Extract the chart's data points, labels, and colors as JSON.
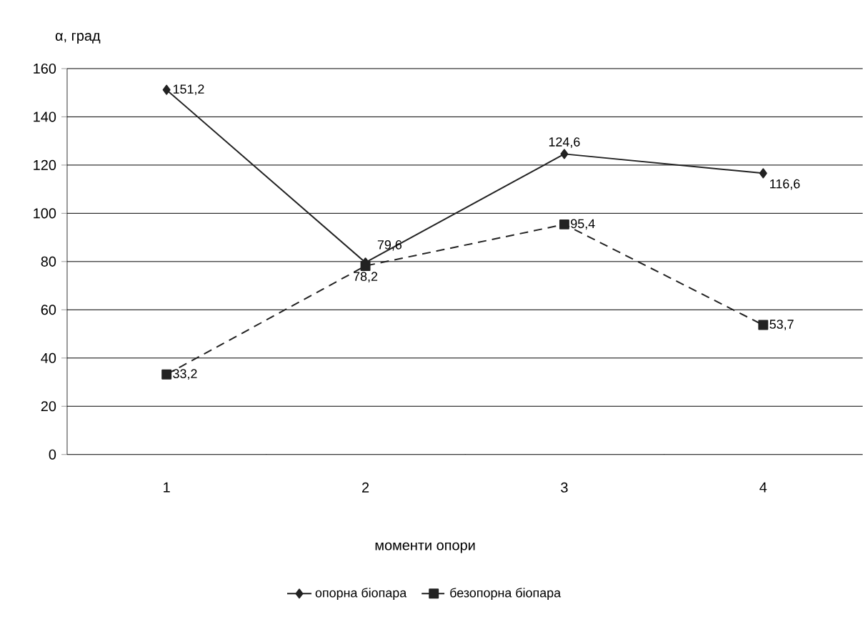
{
  "chart_data": {
    "type": "line",
    "xlabel": "моменти опори",
    "ylabel": "α, град",
    "categories": [
      "1",
      "2",
      "3",
      "4"
    ],
    "series": [
      {
        "name": "опорна біопара",
        "color": "#222222",
        "marker": "diamond",
        "line_style": "solid",
        "values": [
          151.2,
          79.6,
          124.6,
          116.6
        ],
        "value_labels": [
          "151,2",
          "79,6",
          "124,6",
          "116,6"
        ]
      },
      {
        "name": "безопорна біопара",
        "color": "#222222",
        "marker": "square",
        "line_style": "dashed",
        "values": [
          33.2,
          78.2,
          95.4,
          53.7
        ],
        "value_labels": [
          "33,2",
          "78,2",
          "95,4",
          "53,7"
        ]
      }
    ],
    "ylim": [
      0,
      160
    ],
    "yticks": [
      0,
      20,
      40,
      60,
      80,
      100,
      120,
      140,
      160
    ],
    "grid": "y",
    "legend": "bottom"
  }
}
